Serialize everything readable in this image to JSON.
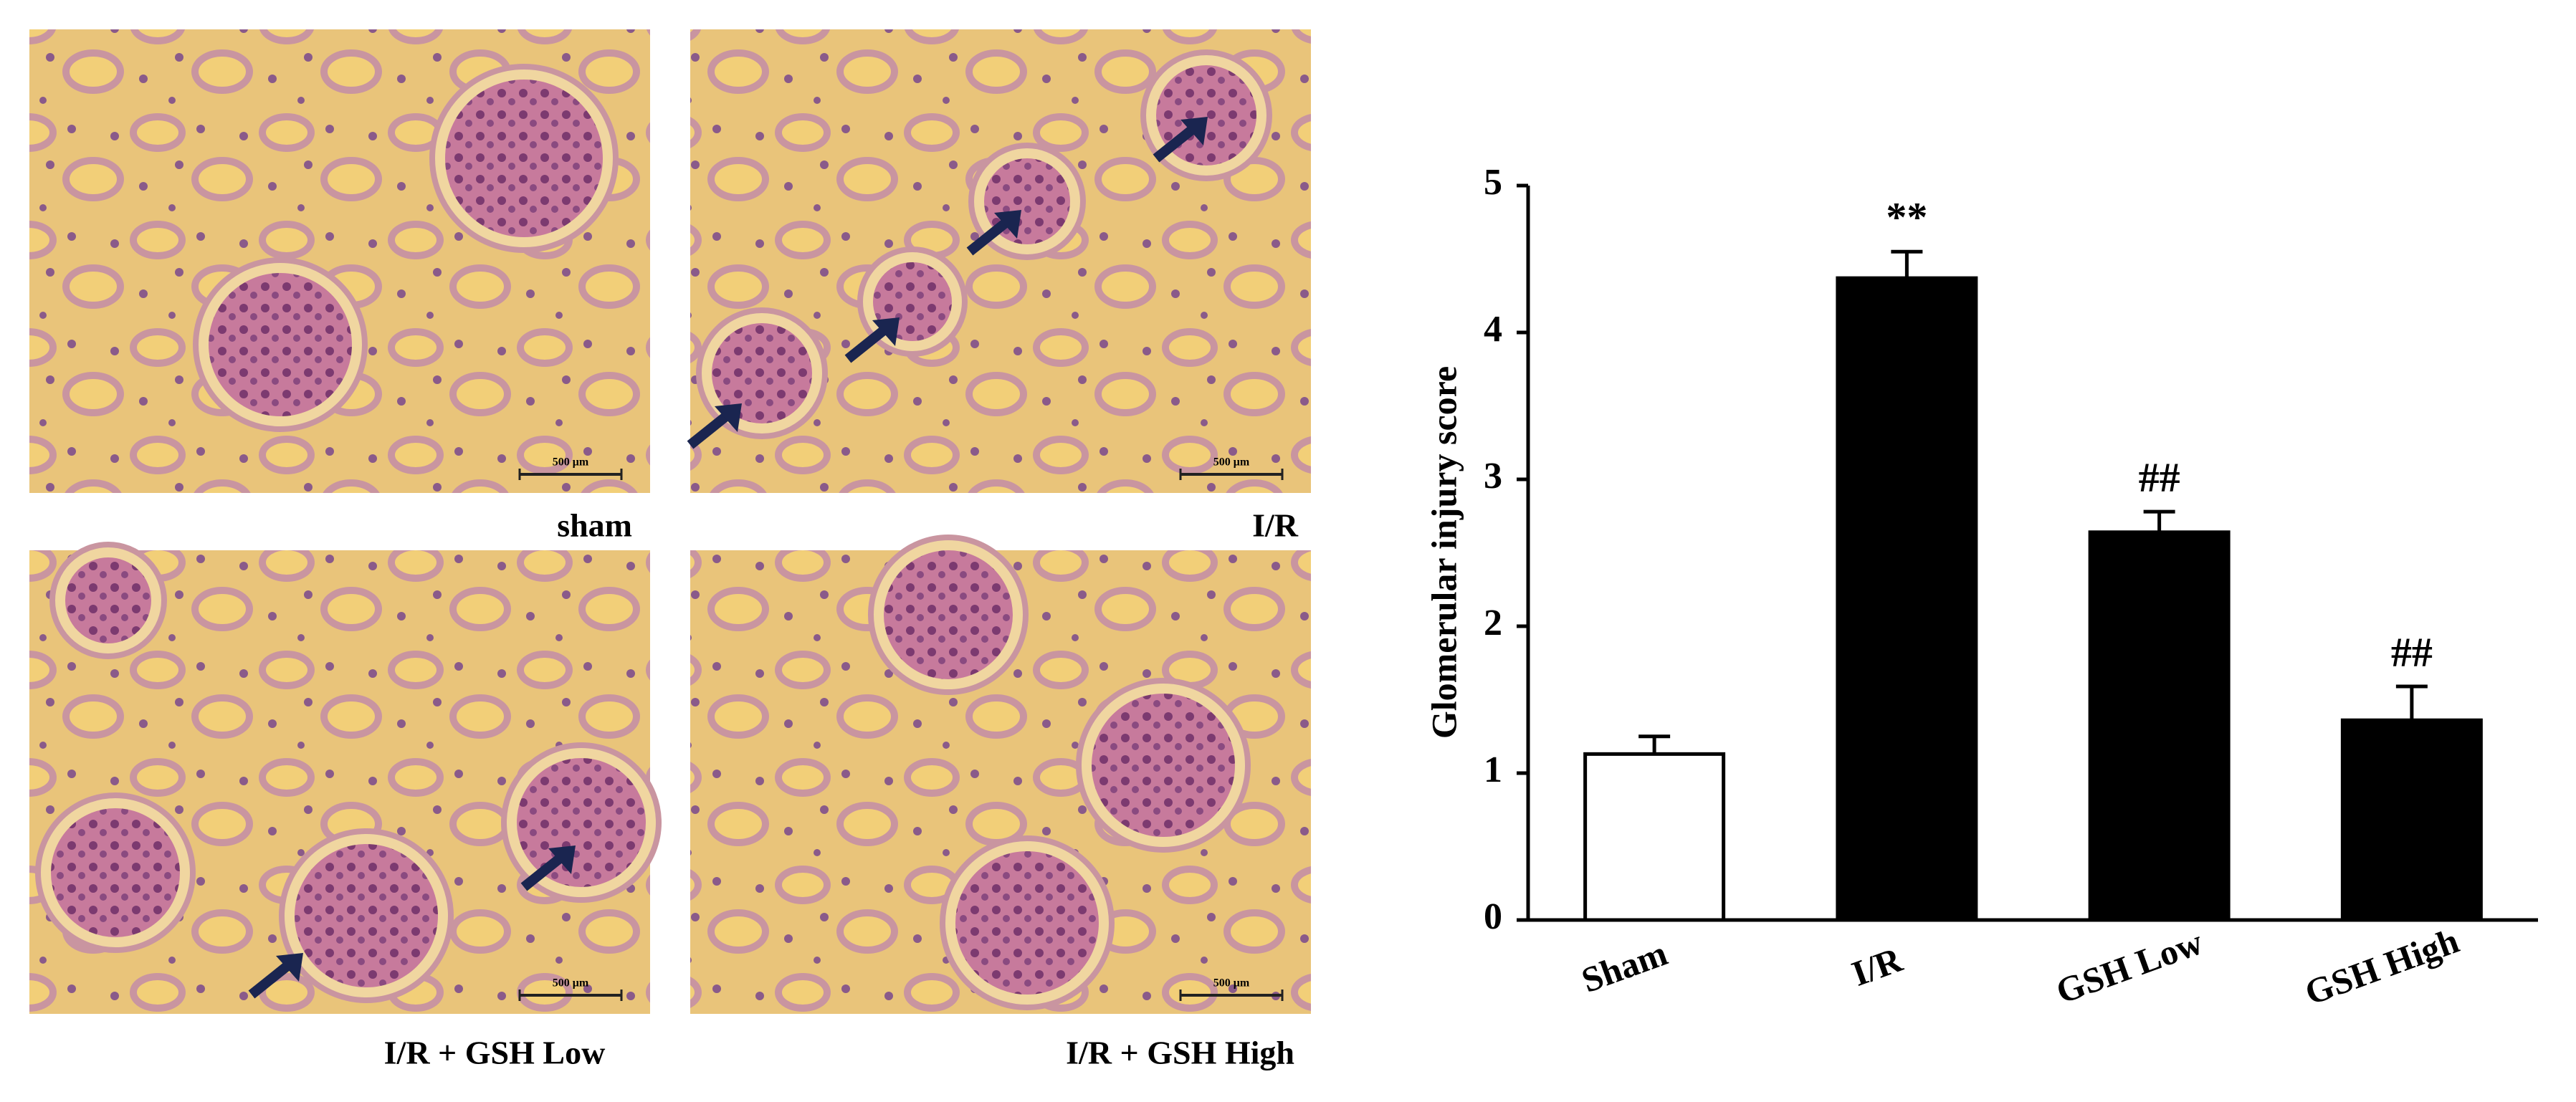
{
  "panels": [
    {
      "label": "sham",
      "scale_bar": "500 μm"
    },
    {
      "label": "I/R",
      "scale_bar": "500 μm"
    },
    {
      "label": "I/R + GSH Low",
      "scale_bar": "500 μm"
    },
    {
      "label": "I/R + GSH High",
      "scale_bar": "500 μm"
    }
  ],
  "chart_data": {
    "type": "bar",
    "y_label": "Glomerular injury score",
    "categories": [
      "Sham",
      "I/R",
      "GSH Low",
      "GSH High"
    ],
    "values": [
      1.13,
      4.37,
      2.64,
      1.36
    ],
    "errors": [
      0.12,
      0.18,
      0.14,
      0.23
    ],
    "annotations": [
      null,
      "**",
      "##",
      "##"
    ],
    "colors": [
      "#ffffff",
      "#000000",
      "#000000",
      "#000000"
    ],
    "ylim": [
      0,
      5
    ],
    "yticks": [
      0,
      1,
      2,
      3,
      4,
      5
    ]
  }
}
